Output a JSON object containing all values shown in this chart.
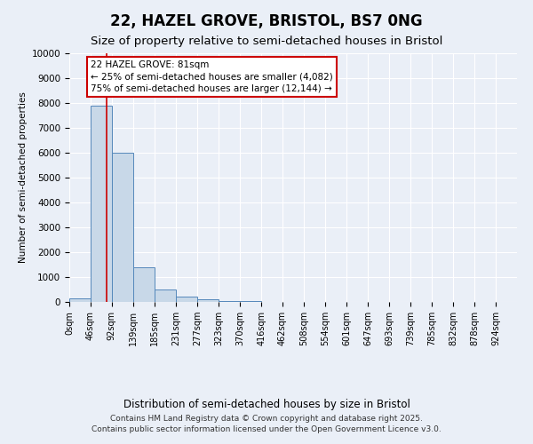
{
  "title": "22, HAZEL GROVE, BRISTOL, BS7 0NG",
  "subtitle": "Size of property relative to semi-detached houses in Bristol",
  "xlabel": "Distribution of semi-detached houses by size in Bristol",
  "ylabel": "Number of semi-detached properties",
  "bin_edges": [
    0,
    46,
    92,
    139,
    185,
    231,
    277,
    323,
    370,
    416,
    462,
    508,
    554,
    601,
    647,
    693,
    739,
    785,
    832,
    878,
    924
  ],
  "bin_counts": [
    150,
    7900,
    6000,
    1400,
    500,
    200,
    100,
    50,
    30,
    10,
    5,
    3,
    2,
    1,
    1,
    0,
    0,
    0,
    0,
    0
  ],
  "bar_color": "#c8d8e8",
  "bar_edge_color": "#5588bb",
  "property_size": 81,
  "red_line_color": "#cc0000",
  "annotation_line1": "22 HAZEL GROVE: 81sqm",
  "annotation_line2": "← 25% of semi-detached houses are smaller (4,082)",
  "annotation_line3": "75% of semi-detached houses are larger (12,144) →",
  "annotation_box_color": "white",
  "annotation_box_edge_color": "#cc0000",
  "ylim": [
    0,
    10000
  ],
  "yticks": [
    0,
    1000,
    2000,
    3000,
    4000,
    5000,
    6000,
    7000,
    8000,
    9000,
    10000
  ],
  "xlim": [
    0,
    970
  ],
  "background_color": "#eaeff7",
  "grid_color": "white",
  "footer_line1": "Contains HM Land Registry data © Crown copyright and database right 2025.",
  "footer_line2": "Contains public sector information licensed under the Open Government Licence v3.0.",
  "title_fontsize": 12,
  "subtitle_fontsize": 9.5,
  "ylabel_fontsize": 7.5,
  "xlabel_fontsize": 8.5,
  "tick_label_fontsize": 7,
  "annotation_fontsize": 7.5,
  "footer_fontsize": 6.5
}
